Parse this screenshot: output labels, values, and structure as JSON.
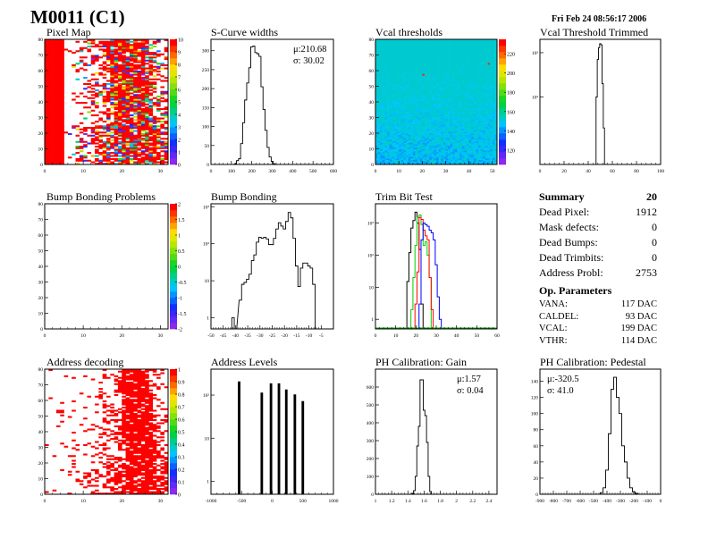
{
  "header": {
    "title": "M0011 (C1)",
    "date": "Fri Feb 24 08:56:17 2006"
  },
  "summary": {
    "title": "Summary",
    "value": "20",
    "rows": [
      {
        "label": "Dead Pixel:",
        "value": "1912"
      },
      {
        "label": "Mask defects:",
        "value": "0"
      },
      {
        "label": "Dead Bumps:",
        "value": "0"
      },
      {
        "label": "Dead Trimbits:",
        "value": "0"
      },
      {
        "label": "Address Probl:",
        "value": "2753"
      }
    ],
    "op_title": "Op. Parameters",
    "op_rows": [
      {
        "label": "VANA:",
        "value": "117 DAC"
      },
      {
        "label": "CALDEL:",
        "value": "93 DAC"
      },
      {
        "label": "VCAL:",
        "value": "199 DAC"
      },
      {
        "label": "VTHR:",
        "value": "114 DAC"
      }
    ]
  },
  "chart_data": [
    {
      "id": "pixel-map",
      "type": "heatmap",
      "title": "Pixel Map",
      "xlim": [
        0,
        32
      ],
      "ylim": [
        0,
        80
      ],
      "xticks": [
        "0",
        "10",
        "20",
        "30"
      ],
      "yticks": [
        "0",
        "10",
        "20",
        "30",
        "40",
        "50",
        "60",
        "70",
        "80"
      ],
      "zlim": [
        0,
        10
      ],
      "zticks": [
        "0",
        "1",
        "2",
        "3",
        "4",
        "5",
        "6",
        "7",
        "8",
        "9",
        "10"
      ],
      "pattern": "pixelmap"
    },
    {
      "id": "scurve-widths",
      "type": "bar",
      "title": "S-Curve widths",
      "xlim": [
        0,
        600
      ],
      "ylim": [
        0,
        330
      ],
      "xticks": [
        "0",
        "100",
        "200",
        "300",
        "400",
        "500",
        "600"
      ],
      "yticks": [
        "0",
        "50",
        "100",
        "150",
        "200",
        "250",
        "300"
      ],
      "stats": [
        "μ:210.68",
        "σ: 30.02"
      ],
      "x": [
        120,
        130,
        140,
        150,
        160,
        170,
        180,
        190,
        200,
        210,
        220,
        230,
        240,
        250,
        260,
        270,
        280,
        290,
        300,
        310
      ],
      "values": [
        2,
        10,
        15,
        55,
        110,
        170,
        215,
        255,
        310,
        312,
        295,
        292,
        285,
        205,
        145,
        90,
        45,
        20,
        8,
        2
      ]
    },
    {
      "id": "vcal-thresholds",
      "type": "heatmap",
      "title": "Vcal thresholds",
      "xlim": [
        0,
        52
      ],
      "ylim": [
        0,
        80
      ],
      "xticks": [
        "0",
        "10",
        "20",
        "30",
        "40",
        "50"
      ],
      "yticks": [
        "0",
        "10",
        "20",
        "30",
        "40",
        "50",
        "60",
        "70",
        "80"
      ],
      "zlim": [
        105,
        235
      ],
      "zticks": [
        "120",
        "140",
        "160",
        "180",
        "200",
        "220"
      ],
      "pattern": "vcal"
    },
    {
      "id": "vcal-threshold-trimmed",
      "type": "bar",
      "title": "Vcal Threshold Trimmed",
      "log": true,
      "xlim": [
        0,
        100
      ],
      "ylim": [
        3,
        2000
      ],
      "xticks": [
        "0",
        "20",
        "40",
        "60",
        "80",
        "100"
      ],
      "yticks": [
        {
          "v": 100,
          "t": "10²"
        },
        {
          "v": 1000,
          "t": "10³"
        }
      ],
      "x": [
        47,
        48,
        49,
        50,
        51,
        52,
        53
      ],
      "values": [
        100,
        700,
        1300,
        1600,
        1500,
        200,
        20
      ]
    },
    {
      "id": "bump-bonding-problems",
      "type": "heatmap",
      "title": "Bump Bonding Problems",
      "xlim": [
        0,
        32
      ],
      "ylim": [
        0,
        80
      ],
      "xticks": [
        "0",
        "10",
        "20",
        "30"
      ],
      "yticks": [
        "0",
        "10",
        "20",
        "30",
        "40",
        "50",
        "60",
        "70",
        "80"
      ],
      "zlim": [
        -2,
        2
      ],
      "zticks": [
        "-2",
        "-1.5",
        "-1",
        "-0.5",
        "0",
        "0.5",
        "1",
        "1.5",
        "2"
      ],
      "pattern": "empty"
    },
    {
      "id": "bump-bonding",
      "type": "bar",
      "title": "Bump Bonding",
      "log": true,
      "xlim": [
        -50,
        0
      ],
      "ylim": [
        0.5,
        1200
      ],
      "xticks": [
        "-50",
        "-45",
        "-40",
        "-35",
        "-30",
        "-25",
        "-20",
        "-15",
        "-10",
        "-5"
      ],
      "yticks": [
        {
          "v": 1,
          "t": "1"
        },
        {
          "v": 10,
          "t": "10"
        },
        {
          "v": 100,
          "t": "10²"
        },
        {
          "v": 1000,
          "t": "10³"
        }
      ],
      "x": [
        -41,
        -40,
        -38,
        -37,
        -36,
        -35,
        -34,
        -33,
        -32,
        -31,
        -30,
        -29,
        -28,
        -27,
        -26,
        -25,
        -24,
        -23,
        -22,
        -21,
        -20,
        -19,
        -18,
        -17,
        -16,
        -15,
        -14,
        -13,
        -12,
        -11,
        -10,
        -9,
        -8,
        -7,
        -6,
        -5
      ],
      "values": [
        1,
        0.4,
        3,
        8,
        9,
        11,
        15,
        35,
        50,
        110,
        150,
        140,
        150,
        135,
        95,
        95,
        140,
        250,
        370,
        300,
        250,
        400,
        700,
        500,
        140,
        25,
        7,
        22,
        30,
        30,
        25,
        22,
        8,
        0.4,
        0.4,
        0.4
      ]
    },
    {
      "id": "trim-bit-test",
      "type": "line",
      "title": "Trim Bit Test",
      "log": true,
      "xlim": [
        0,
        60
      ],
      "ylim": [
        0.5,
        4000
      ],
      "xticks": [
        "0",
        "10",
        "20",
        "30",
        "40",
        "50",
        "60"
      ],
      "yticks": [
        {
          "v": 1,
          "t": "1"
        },
        {
          "v": 10,
          "t": "10"
        },
        {
          "v": 100,
          "t": "10²"
        },
        {
          "v": 1000,
          "t": "10³"
        }
      ],
      "series": [
        {
          "name": "black",
          "color": "#000000",
          "x": [
            16,
            17,
            18,
            19,
            20,
            21,
            22,
            23
          ],
          "values": [
            15,
            120,
            700,
            1200,
            2200,
            1000,
            150,
            3
          ]
        },
        {
          "name": "green",
          "color": "#00cc00",
          "x": [
            18,
            19,
            20,
            21,
            22,
            23,
            24,
            25,
            26,
            27
          ],
          "values": [
            2,
            20,
            200,
            1500,
            1800,
            900,
            200,
            260,
            100,
            20
          ]
        },
        {
          "name": "red",
          "color": "#ff0000",
          "x": [
            20,
            21,
            22,
            23,
            24,
            25,
            26,
            27,
            28
          ],
          "values": [
            3,
            30,
            1500,
            1300,
            600,
            400,
            300,
            20,
            2
          ]
        },
        {
          "name": "blue",
          "color": "#0000ff",
          "x": [
            22,
            23,
            24,
            25,
            26,
            27,
            28,
            29,
            30,
            31,
            32
          ],
          "values": [
            3,
            300,
            1000,
            900,
            800,
            600,
            500,
            300,
            50,
            5,
            1
          ]
        }
      ]
    },
    {
      "id": "address-decoding",
      "type": "heatmap",
      "title": "Address decoding",
      "xlim": [
        0,
        32
      ],
      "ylim": [
        0,
        80
      ],
      "xticks": [
        "0",
        "10",
        "20",
        "30"
      ],
      "yticks": [
        "0",
        "10",
        "20",
        "30",
        "40",
        "50",
        "60",
        "70",
        "80"
      ],
      "zlim": [
        0,
        1
      ],
      "zticks": [
        "0",
        "0.1",
        "0.2",
        "0.3",
        "0.4",
        "0.5",
        "0.6",
        "0.7",
        "0.8",
        "0.9",
        "1"
      ],
      "pattern": "address"
    },
    {
      "id": "address-levels",
      "type": "bar",
      "title": "Address Levels",
      "log": true,
      "xlim": [
        -1000,
        1000
      ],
      "ylim": [
        0.5,
        400
      ],
      "xticks": [
        "-1000",
        "-500",
        "0",
        "500",
        "1000"
      ],
      "yticks": [
        {
          "v": 1,
          "t": "1"
        },
        {
          "v": 10,
          "t": "10"
        },
        {
          "v": 100,
          "t": "10²"
        }
      ],
      "x": [
        -540,
        -170,
        -20,
        110,
        230,
        370,
        500
      ],
      "values": [
        200,
        110,
        180,
        180,
        130,
        100,
        70
      ]
    },
    {
      "id": "ph-gain",
      "type": "bar",
      "title": "PH Calibration: Gain",
      "xlim": [
        1,
        2.5
      ],
      "ylim": [
        0,
        700
      ],
      "xticks": [
        "1",
        "1.2",
        "1.4",
        "1.6",
        "1.8",
        "2",
        "2.2",
        "2.4"
      ],
      "yticks": [
        "0",
        "100",
        "200",
        "300",
        "400",
        "500",
        "600"
      ],
      "stats": [
        "μ:1.57",
        "σ: 0.04"
      ],
      "x": [
        1.46,
        1.48,
        1.5,
        1.52,
        1.54,
        1.56,
        1.58,
        1.6,
        1.62,
        1.64,
        1.66,
        1.68
      ],
      "values": [
        5,
        20,
        100,
        270,
        380,
        640,
        640,
        470,
        440,
        290,
        100,
        15
      ]
    },
    {
      "id": "ph-pedestal",
      "type": "bar",
      "title": "PH Calibration: Pedestal",
      "xlim": [
        -900,
        0
      ],
      "ylim": [
        0,
        155
      ],
      "xticks": [
        "-900",
        "-800",
        "-700",
        "-600",
        "-500",
        "-400",
        "-300",
        "-200",
        "-100",
        "0"
      ],
      "yticks": [
        "0",
        "20",
        "40",
        "60",
        "80",
        "100",
        "120",
        "140"
      ],
      "stats": [
        "μ:-320.5",
        "σ: 41.0"
      ],
      "x": [
        -440,
        -420,
        -400,
        -380,
        -360,
        -340,
        -320,
        -300,
        -280,
        -260,
        -240,
        -220,
        -200,
        -180
      ],
      "values": [
        2,
        8,
        30,
        75,
        130,
        145,
        120,
        100,
        60,
        40,
        20,
        8,
        3,
        1
      ]
    }
  ]
}
